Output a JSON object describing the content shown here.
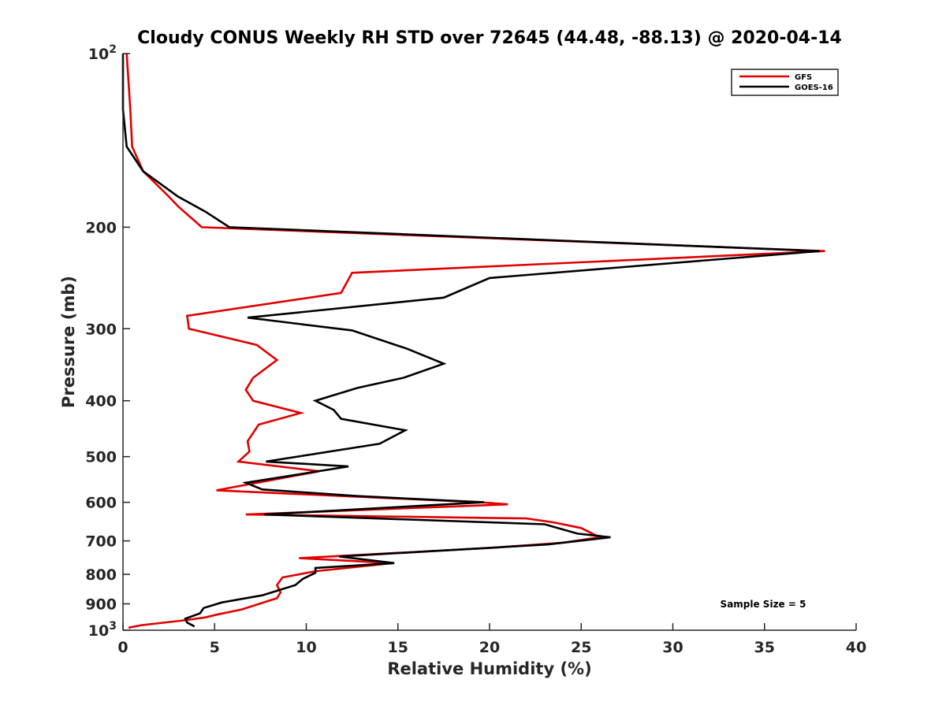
{
  "chart_data": {
    "type": "line",
    "title": "Cloudy CONUS Weekly RH STD over 72645 (44.48, -88.13) @ 2020-04-14",
    "xlabel": "Relative Humidity (%)",
    "ylabel": "Pressure (mb)",
    "xlim": [
      0,
      40
    ],
    "ylim": [
      100,
      1000
    ],
    "yscale": "log",
    "y_reversed": true,
    "x_ticks": [
      "0",
      "5",
      "10",
      "15",
      "20",
      "25",
      "30",
      "35",
      "40"
    ],
    "y_ticks": [
      {
        "value": 100,
        "base": "10",
        "exp": "2"
      },
      {
        "value": 200,
        "label": "200"
      },
      {
        "value": 300,
        "label": "300"
      },
      {
        "value": 400,
        "label": "400"
      },
      {
        "value": 500,
        "label": "500"
      },
      {
        "value": 600,
        "label": "600"
      },
      {
        "value": 700,
        "label": "700"
      },
      {
        "value": 800,
        "label": "800"
      },
      {
        "value": 900,
        "label": "900"
      },
      {
        "value": 1000,
        "base": "10",
        "exp": "3"
      }
    ],
    "legend_position": "top-right",
    "annotation": "Sample Size = 5",
    "series": [
      {
        "name": "GFS",
        "color": "#e00000",
        "points": [
          [
            0.2,
            100
          ],
          [
            0.4,
            125
          ],
          [
            0.5,
            145
          ],
          [
            1.1,
            160
          ],
          [
            2.5,
            177
          ],
          [
            3.0,
            184
          ],
          [
            4.3,
            200
          ],
          [
            38.3,
            220
          ],
          [
            12.5,
            240
          ],
          [
            11.9,
            260
          ],
          [
            3.5,
            285
          ],
          [
            3.6,
            300
          ],
          [
            7.3,
            320
          ],
          [
            8.4,
            340
          ],
          [
            7.1,
            365
          ],
          [
            6.7,
            383
          ],
          [
            7.1,
            400
          ],
          [
            9.7,
            420
          ],
          [
            7.4,
            440
          ],
          [
            6.8,
            470
          ],
          [
            6.9,
            490
          ],
          [
            6.3,
            510
          ],
          [
            10.7,
            530
          ],
          [
            5.1,
            572
          ],
          [
            19.5,
            600
          ],
          [
            21.0,
            605
          ],
          [
            6.7,
            630
          ],
          [
            22.0,
            640
          ],
          [
            23.5,
            650
          ],
          [
            25.0,
            665
          ],
          [
            26.0,
            690
          ],
          [
            24.0,
            705
          ],
          [
            20.0,
            720
          ],
          [
            9.6,
            750
          ],
          [
            14.7,
            765
          ],
          [
            10.5,
            790
          ],
          [
            8.7,
            810
          ],
          [
            8.4,
            835
          ],
          [
            8.6,
            860
          ],
          [
            8.4,
            880
          ],
          [
            7.9,
            890
          ],
          [
            6.5,
            920
          ],
          [
            5.1,
            940
          ],
          [
            4.5,
            950
          ],
          [
            3.5,
            960
          ],
          [
            1.0,
            980
          ],
          [
            0.3,
            990
          ]
        ]
      },
      {
        "name": "GOES-16",
        "color": "#000000",
        "points": [
          [
            0.0,
            100
          ],
          [
            0.0,
            125
          ],
          [
            0.2,
            145
          ],
          [
            1.1,
            160
          ],
          [
            3.0,
            177
          ],
          [
            4.5,
            188
          ],
          [
            5.8,
            200
          ],
          [
            38.0,
            220
          ],
          [
            20.0,
            245
          ],
          [
            17.5,
            265
          ],
          [
            6.8,
            287
          ],
          [
            12.5,
            302
          ],
          [
            15.5,
            325
          ],
          [
            17.5,
            345
          ],
          [
            15.3,
            365
          ],
          [
            12.8,
            380
          ],
          [
            10.5,
            400
          ],
          [
            11.5,
            415
          ],
          [
            11.9,
            430
          ],
          [
            15.4,
            450
          ],
          [
            14.0,
            475
          ],
          [
            7.8,
            510
          ],
          [
            12.3,
            520
          ],
          [
            6.7,
            555
          ],
          [
            7.6,
            570
          ],
          [
            12.7,
            585
          ],
          [
            19.7,
            600
          ],
          [
            7.7,
            630
          ],
          [
            23.0,
            655
          ],
          [
            24.8,
            680
          ],
          [
            26.6,
            690
          ],
          [
            23.2,
            710
          ],
          [
            11.8,
            745
          ],
          [
            14.8,
            765
          ],
          [
            10.5,
            780
          ],
          [
            10.5,
            795
          ],
          [
            9.8,
            815
          ],
          [
            9.4,
            835
          ],
          [
            7.6,
            870
          ],
          [
            5.4,
            895
          ],
          [
            4.4,
            915
          ],
          [
            4.2,
            935
          ],
          [
            3.4,
            955
          ],
          [
            3.5,
            970
          ],
          [
            3.9,
            985
          ]
        ]
      }
    ]
  }
}
